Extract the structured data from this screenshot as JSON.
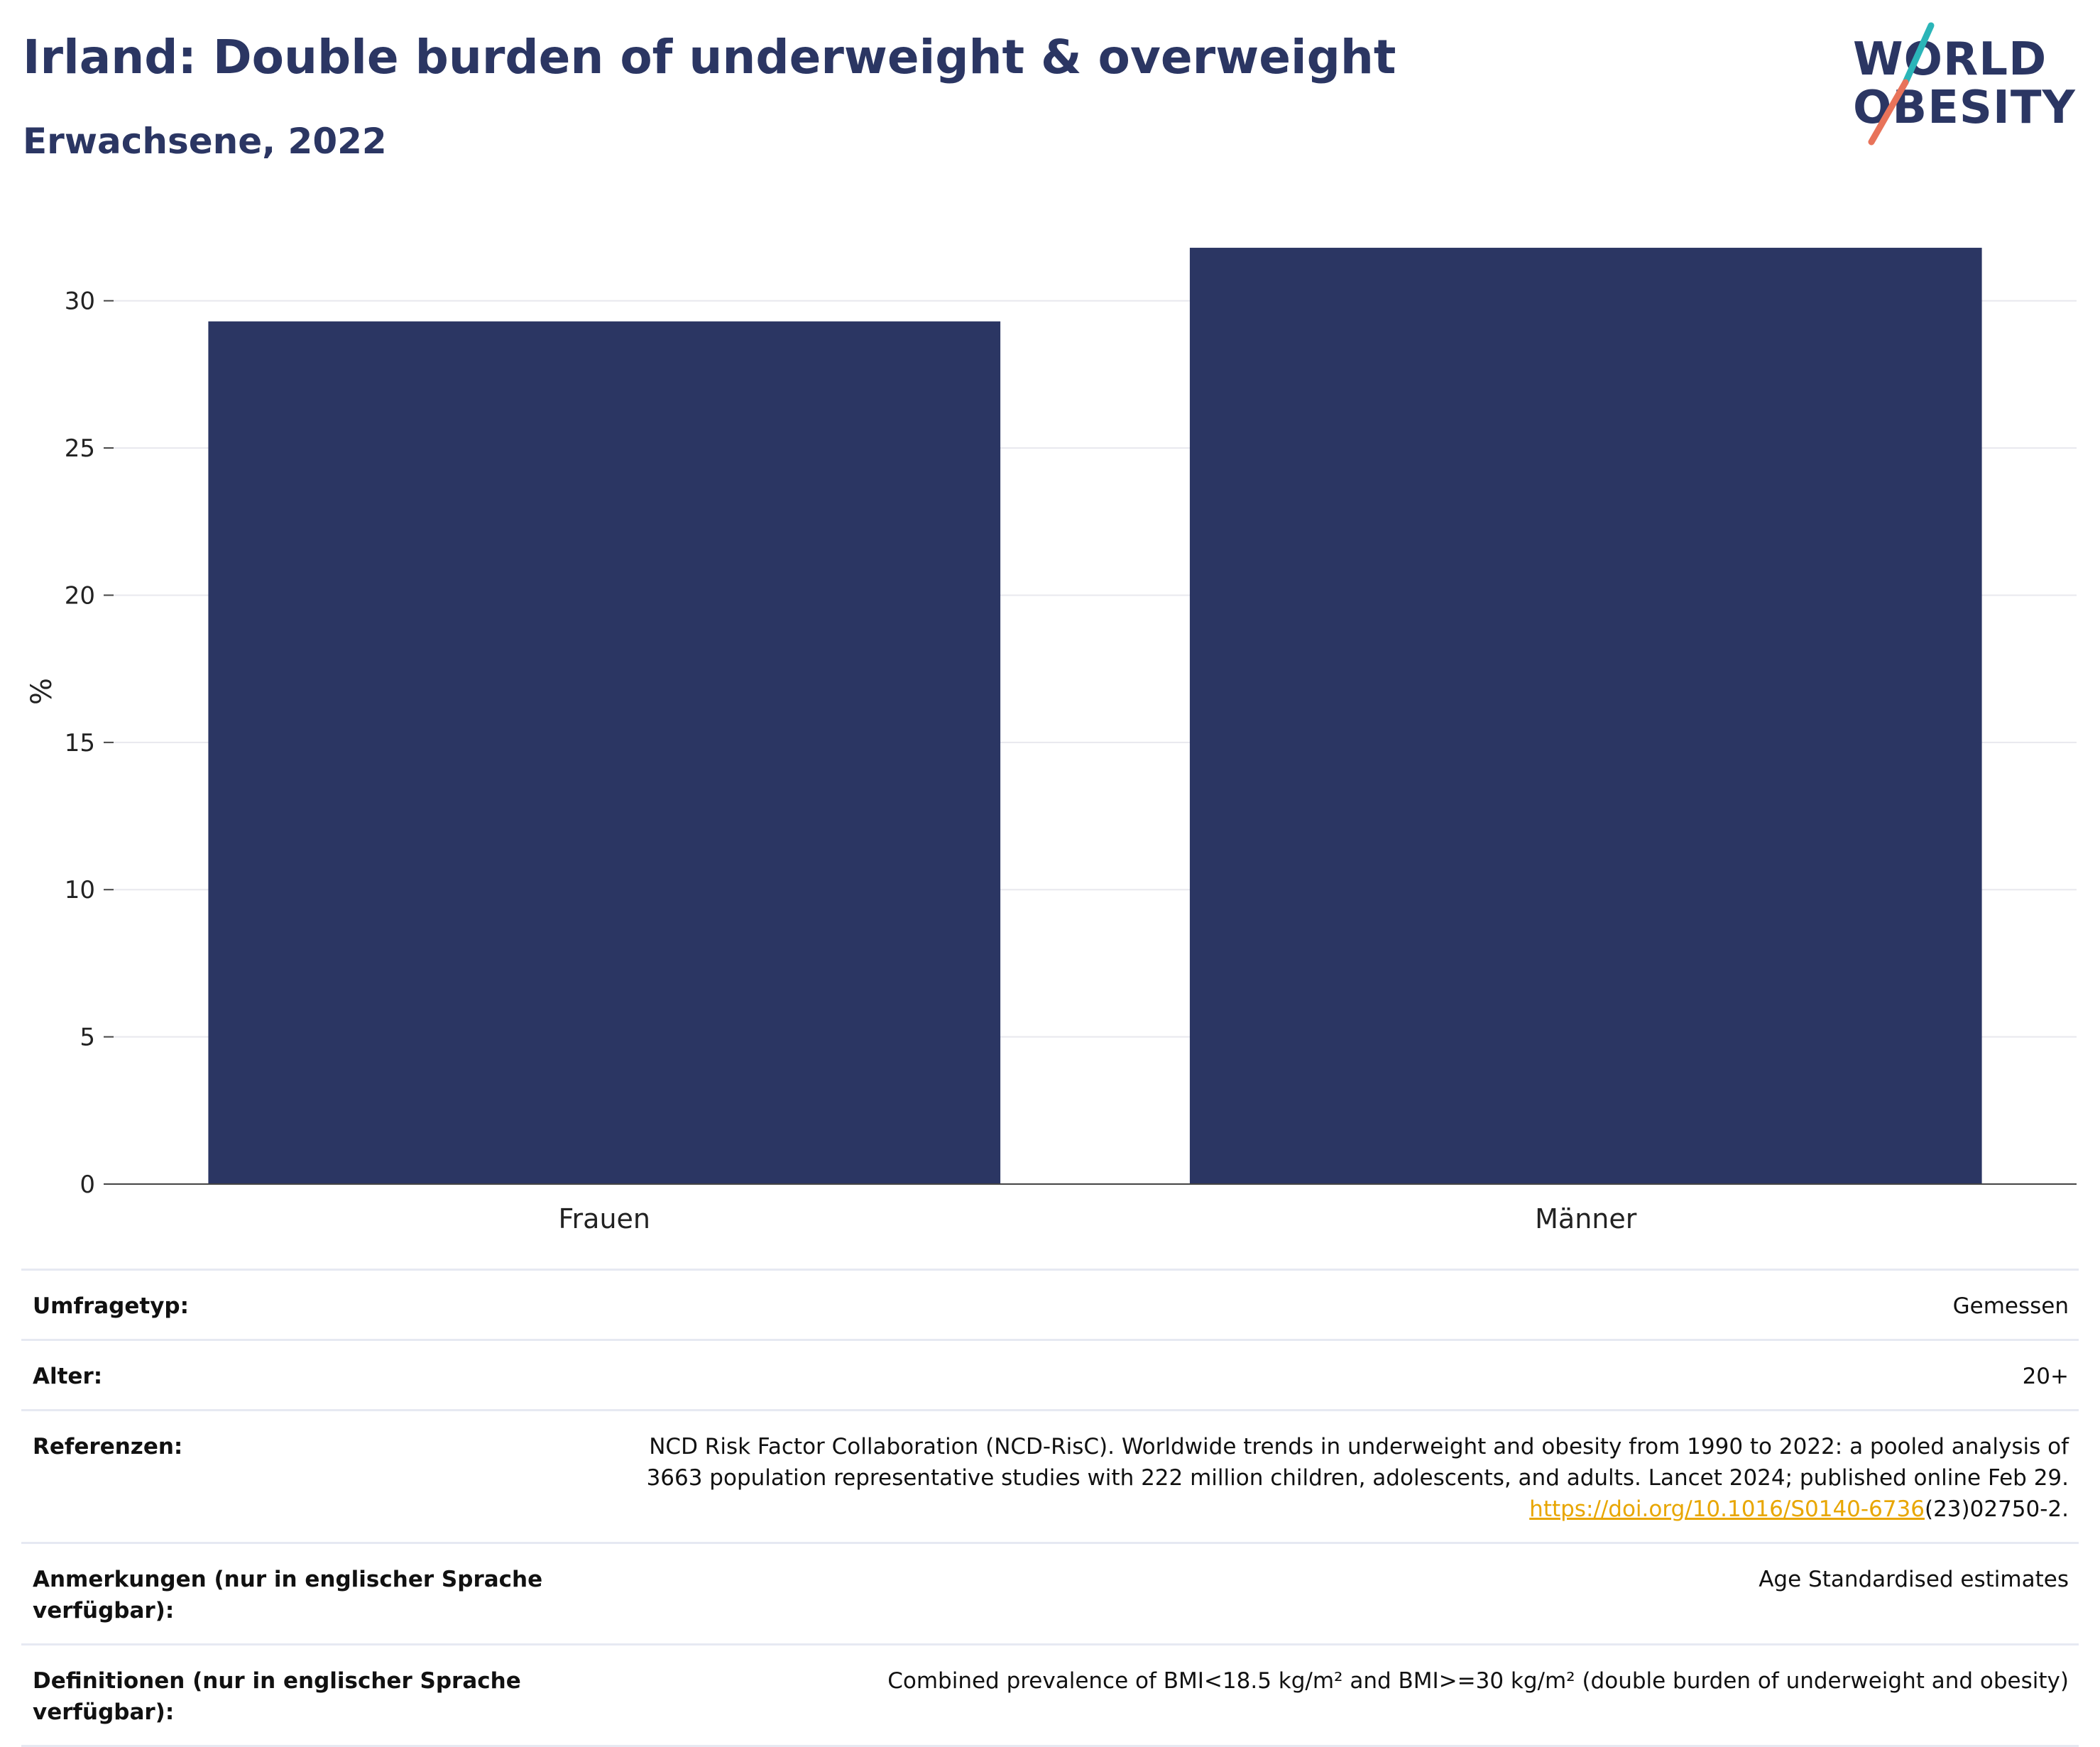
{
  "header": {
    "title": "Irland: Double burden of underweight & overweight",
    "subtitle": "Erwachsene, 2022"
  },
  "logo": {
    "line1": "WORLD",
    "line2": "OBESITY",
    "accent_colors": [
      "#2bb5b8",
      "#e8735a"
    ]
  },
  "chart_data": {
    "type": "bar",
    "categories": [
      "Frauen",
      "Männer"
    ],
    "values": [
      29.3,
      31.8
    ],
    "ylabel": "%",
    "xlabel": "",
    "ylim": [
      0,
      32.5
    ],
    "yticks": [
      0,
      5,
      10,
      15,
      20,
      25,
      30
    ],
    "grid": true,
    "bar_color": "#2b3663"
  },
  "meta": [
    {
      "key": "Umfragetyp:",
      "value": "Gemessen"
    },
    {
      "key": "Alter:",
      "value": "20+"
    },
    {
      "key": "Referenzen:",
      "value_line1": "NCD Risk Factor Collaboration (NCD-RisC). Worldwide trends in underweight and obesity from 1990 to 2022: a pooled analysis of",
      "value_line2": "3663 population representative studies with 222 million children, adolescents, and adults. Lancet 2024; published online Feb 29.",
      "link": "https://doi.org/10.1016/S0140-6736",
      "link_suffix": "(23)02750-2."
    },
    {
      "key": "Anmerkungen (nur in englischer Sprache verfügbar):",
      "value": "Age Standardised estimates"
    },
    {
      "key": "Definitionen (nur in englischer Sprache verfügbar):",
      "value": "Combined prevalence of BMI<18.5 kg/m² and BMI>=30 kg/m² (double burden of underweight and obesity)"
    }
  ]
}
